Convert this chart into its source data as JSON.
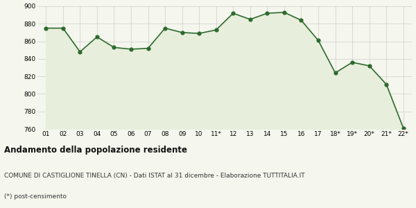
{
  "x_labels": [
    "01",
    "02",
    "03",
    "04",
    "05",
    "06",
    "07",
    "08",
    "09",
    "10",
    "11*",
    "12",
    "13",
    "14",
    "15",
    "16",
    "17",
    "18*",
    "19*",
    "20*",
    "21*",
    "22*"
  ],
  "y_values": [
    875,
    875,
    848,
    865,
    853,
    851,
    852,
    875,
    870,
    869,
    873,
    892,
    885,
    892,
    893,
    884,
    861,
    824,
    836,
    832,
    811,
    761
  ],
  "line_color": "#2d6a2d",
  "fill_color": "#e8eedc",
  "marker_color": "#2d6a2d",
  "background_color": "#f5f7ee",
  "grid_color": "#cccccc",
  "ylim": [
    760,
    900
  ],
  "yticks": [
    760,
    780,
    800,
    820,
    840,
    860,
    880,
    900
  ],
  "title": "Andamento della popolazione residente",
  "subtitle": "COMUNE DI CASTIGLIONE TINELLA (CN) - Dati ISTAT al 31 dicembre - Elaborazione TUTTITALIA.IT",
  "footnote": "(*) post-censimento",
  "title_fontsize": 8.5,
  "subtitle_fontsize": 6.5,
  "footnote_fontsize": 6.5,
  "tick_fontsize": 6.5
}
